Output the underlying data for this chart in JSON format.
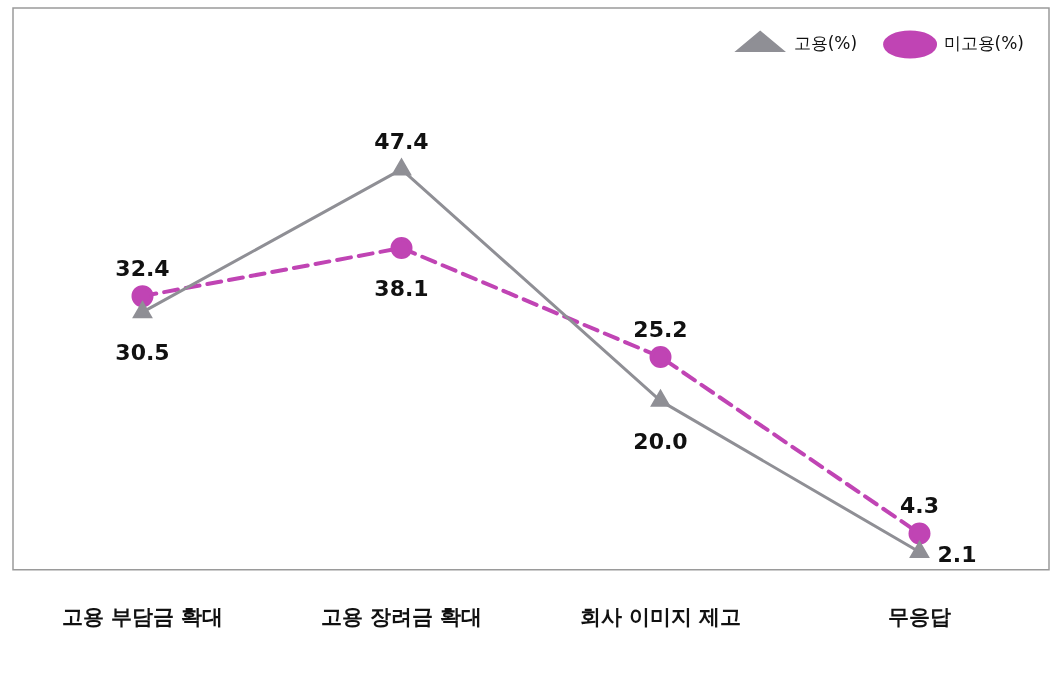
{
  "chart_data": {
    "type": "line",
    "categories": [
      "고용 부담금 확대",
      "고용 장려금 확대",
      "회사 이미지 제고",
      "무응답"
    ],
    "series": [
      {
        "name": "고용(%)",
        "color": "#8f8f95",
        "values": [
          30.5,
          47.4,
          20.0,
          2.1
        ],
        "value_labels": [
          "30.5",
          "47.4",
          "20.0",
          "2.1"
        ],
        "marker": "triangle",
        "line_style": "solid"
      },
      {
        "name": "미고용(%)",
        "color": "#c044b4",
        "values": [
          32.4,
          38.1,
          25.2,
          4.3
        ],
        "value_labels": [
          "32.4",
          "38.1",
          "25.2",
          "4.3"
        ],
        "marker": "circle",
        "line_style": "dashed"
      }
    ],
    "data_labels": true,
    "legend": "top right",
    "grid": false
  }
}
